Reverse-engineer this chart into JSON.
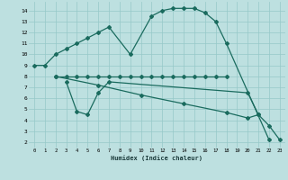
{
  "line1": {
    "x": [
      0,
      1,
      2,
      3,
      4,
      5,
      6,
      7,
      9,
      11,
      12,
      13,
      14,
      15,
      16,
      17,
      18,
      22
    ],
    "y": [
      9,
      9,
      10,
      10.5,
      11,
      11.5,
      12,
      12.5,
      10,
      13.5,
      14.0,
      14.2,
      14.2,
      14.2,
      13.8,
      13.0,
      11.0,
      2.2
    ]
  },
  "line2": {
    "x": [
      2,
      3,
      18
    ],
    "y": [
      8.0,
      8.0,
      8.0
    ]
  },
  "line2b": {
    "x": [
      2,
      3,
      4,
      5,
      6,
      7,
      8,
      9,
      10,
      11,
      12,
      13,
      14,
      15,
      16,
      17,
      18
    ],
    "y": [
      8.0,
      8.0,
      8.0,
      8.0,
      8.0,
      8.0,
      8.0,
      8.0,
      8.0,
      8.0,
      8.0,
      8.0,
      8.0,
      8.0,
      8.0,
      8.0,
      8.0
    ]
  },
  "line3": {
    "x": [
      2,
      6,
      10,
      14,
      18,
      20,
      21,
      22,
      23
    ],
    "y": [
      8.0,
      7.2,
      6.3,
      5.5,
      4.7,
      4.2,
      4.5,
      3.5,
      2.2
    ]
  },
  "line4": {
    "x": [
      3,
      4,
      5,
      6,
      7,
      20,
      21
    ],
    "y": [
      7.5,
      4.8,
      4.5,
      6.5,
      7.5,
      6.5,
      4.5
    ]
  },
  "xlabel": "Humidex (Indice chaleur)",
  "xlim": [
    -0.5,
    23.5
  ],
  "ylim": [
    1.5,
    14.8
  ],
  "xticks": [
    0,
    1,
    2,
    3,
    4,
    5,
    6,
    7,
    8,
    9,
    10,
    11,
    12,
    13,
    14,
    15,
    16,
    17,
    18,
    19,
    20,
    21,
    22,
    23
  ],
  "yticks": [
    2,
    3,
    4,
    5,
    6,
    7,
    8,
    9,
    10,
    11,
    12,
    13,
    14
  ],
  "bg_color": "#bde0e0",
  "grid_color": "#96c8c8",
  "line_color": "#1a6b5e",
  "xlabel_color": "#1a3a3a"
}
